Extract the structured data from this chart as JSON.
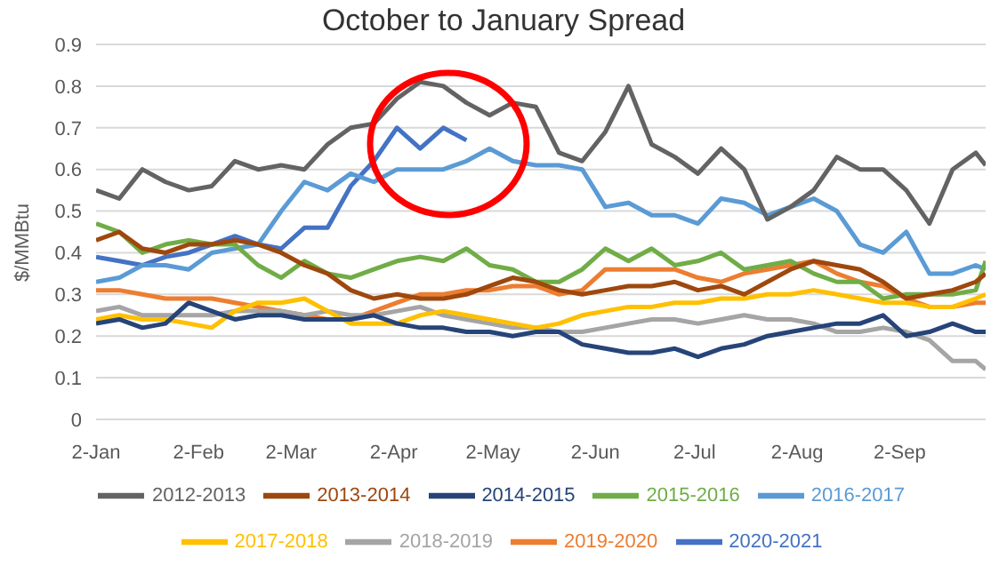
{
  "chart_data": {
    "type": "line",
    "title": "October to January Spread",
    "ylabel": "$/MMBtu",
    "x": [
      "--01-02",
      "--01-09",
      "--01-16",
      "--01-23",
      "--01-30",
      "--02-06",
      "--02-13",
      "--02-20",
      "--02-27",
      "--03-06",
      "--03-13",
      "--03-20",
      "--03-27",
      "--04-03",
      "--04-10",
      "--04-17",
      "--04-24",
      "--05-01",
      "--05-08",
      "--05-15",
      "--05-22",
      "--05-29",
      "--06-05",
      "--06-12",
      "--06-19",
      "--06-26",
      "--07-03",
      "--07-10",
      "--07-17",
      "--07-24",
      "--07-31",
      "--08-07",
      "--08-14",
      "--08-21",
      "--08-28",
      "--09-04",
      "--09-11",
      "--09-18",
      "--09-25",
      "--09-28"
    ],
    "xlim": [
      "--01-02",
      "--09-28"
    ],
    "xticks": [
      {
        "value": "--01-02",
        "label": "2-Jan"
      },
      {
        "value": "--02-02",
        "label": "2-Feb"
      },
      {
        "value": "--03-02",
        "label": "2-Mar"
      },
      {
        "value": "--04-02",
        "label": "2-Apr"
      },
      {
        "value": "--05-02",
        "label": "2-May"
      },
      {
        "value": "--06-02",
        "label": "2-Jun"
      },
      {
        "value": "--07-02",
        "label": "2-Jul"
      },
      {
        "value": "--08-02",
        "label": "2-Aug"
      },
      {
        "value": "--09-02",
        "label": "2-Sep"
      }
    ],
    "ylim": [
      0,
      0.9
    ],
    "yticks": [
      0,
      0.1,
      0.2,
      0.3,
      0.4,
      0.5,
      0.6,
      0.7,
      0.8,
      0.9
    ],
    "grid": "y",
    "legend": "bottom",
    "marker": "none",
    "line_style": "solid",
    "series": [
      {
        "name": "2020-2021",
        "color": "#4472c4",
        "values": [
          0.39,
          0.38,
          0.37,
          0.39,
          0.4,
          0.42,
          0.44,
          0.42,
          0.41,
          0.46,
          0.46,
          0.56,
          0.62,
          0.7,
          0.65,
          0.7,
          0.67,
          null,
          null,
          null,
          null,
          null,
          null,
          null,
          null,
          null,
          null,
          null,
          null,
          null,
          null,
          null,
          null,
          null,
          null,
          null,
          null,
          null,
          null,
          null
        ]
      },
      {
        "name": "2019-2020",
        "color": "#ed7d31",
        "values": [
          0.31,
          0.31,
          0.3,
          0.29,
          0.29,
          0.29,
          0.28,
          0.27,
          0.26,
          0.25,
          0.24,
          0.24,
          0.26,
          0.28,
          0.3,
          0.3,
          0.31,
          0.31,
          0.32,
          0.32,
          0.3,
          0.31,
          0.36,
          0.36,
          0.36,
          0.36,
          0.34,
          0.33,
          0.35,
          0.36,
          0.37,
          0.38,
          0.35,
          0.33,
          0.32,
          0.29,
          0.27,
          0.27,
          0.28,
          0.28
        ]
      },
      {
        "name": "2018-2019",
        "color": "#a5a5a5",
        "values": [
          0.26,
          0.27,
          0.25,
          0.25,
          0.25,
          0.25,
          0.26,
          0.26,
          0.26,
          0.25,
          0.26,
          0.25,
          0.25,
          0.26,
          0.27,
          0.25,
          0.24,
          0.23,
          0.22,
          0.22,
          0.21,
          0.21,
          0.22,
          0.23,
          0.24,
          0.24,
          0.23,
          0.24,
          0.25,
          0.24,
          0.24,
          0.23,
          0.21,
          0.21,
          0.22,
          0.21,
          0.19,
          0.14,
          0.14,
          0.12
        ]
      },
      {
        "name": "2017-2018",
        "color": "#ffc000",
        "values": [
          0.24,
          0.25,
          0.24,
          0.24,
          0.23,
          0.22,
          0.26,
          0.28,
          0.28,
          0.29,
          0.26,
          0.23,
          0.23,
          0.23,
          0.25,
          0.26,
          0.25,
          0.24,
          0.23,
          0.22,
          0.23,
          0.25,
          0.26,
          0.27,
          0.27,
          0.28,
          0.28,
          0.29,
          0.29,
          0.3,
          0.3,
          0.31,
          0.3,
          0.29,
          0.28,
          0.28,
          0.27,
          0.27,
          0.29,
          0.3
        ]
      },
      {
        "name": "2016-2017",
        "color": "#5b9bd5",
        "values": [
          0.33,
          0.34,
          0.37,
          0.37,
          0.36,
          0.4,
          0.41,
          0.42,
          0.5,
          0.57,
          0.55,
          0.59,
          0.57,
          0.6,
          0.6,
          0.6,
          0.62,
          0.65,
          0.62,
          0.61,
          0.61,
          0.6,
          0.51,
          0.52,
          0.49,
          0.49,
          0.47,
          0.53,
          0.52,
          0.49,
          0.51,
          0.53,
          0.5,
          0.42,
          0.4,
          0.45,
          0.35,
          0.35,
          0.37,
          0.36
        ]
      },
      {
        "name": "2015-2016",
        "color": "#70ad47",
        "values": [
          0.47,
          0.45,
          0.4,
          0.42,
          0.43,
          0.42,
          0.42,
          0.37,
          0.34,
          0.38,
          0.35,
          0.34,
          0.36,
          0.38,
          0.39,
          0.38,
          0.41,
          0.37,
          0.36,
          0.33,
          0.33,
          0.36,
          0.41,
          0.38,
          0.41,
          0.37,
          0.38,
          0.4,
          0.36,
          0.37,
          0.38,
          0.35,
          0.33,
          0.33,
          0.29,
          0.3,
          0.3,
          0.3,
          0.31,
          0.38
        ]
      },
      {
        "name": "2014-2015",
        "color": "#264478",
        "values": [
          0.23,
          0.24,
          0.22,
          0.23,
          0.28,
          0.26,
          0.24,
          0.25,
          0.25,
          0.24,
          0.24,
          0.24,
          0.25,
          0.23,
          0.22,
          0.22,
          0.21,
          0.21,
          0.2,
          0.21,
          0.21,
          0.18,
          0.17,
          0.16,
          0.16,
          0.17,
          0.15,
          0.17,
          0.18,
          0.2,
          0.21,
          0.22,
          0.23,
          0.23,
          0.25,
          0.2,
          0.21,
          0.23,
          0.21,
          0.21
        ]
      },
      {
        "name": "2013-2014",
        "color": "#9e480e",
        "values": [
          0.43,
          0.45,
          0.41,
          0.4,
          0.42,
          0.42,
          0.43,
          0.42,
          0.4,
          0.37,
          0.35,
          0.31,
          0.29,
          0.3,
          0.29,
          0.29,
          0.3,
          0.32,
          0.34,
          0.33,
          0.31,
          0.3,
          0.31,
          0.32,
          0.32,
          0.33,
          0.31,
          0.32,
          0.3,
          0.33,
          0.36,
          0.38,
          0.37,
          0.36,
          0.33,
          0.29,
          0.3,
          0.31,
          0.33,
          0.35
        ]
      },
      {
        "name": "2012-2013",
        "color": "#636363",
        "values": [
          0.55,
          0.53,
          0.6,
          0.57,
          0.55,
          0.56,
          0.62,
          0.6,
          0.61,
          0.6,
          0.66,
          0.7,
          0.71,
          0.77,
          0.81,
          0.8,
          0.76,
          0.73,
          0.76,
          0.75,
          0.64,
          0.62,
          0.69,
          0.8,
          0.66,
          0.63,
          0.59,
          0.65,
          0.6,
          0.48,
          0.51,
          0.55,
          0.63,
          0.6,
          0.6,
          0.55,
          0.47,
          0.6,
          0.64,
          0.61
        ]
      }
    ]
  }
}
